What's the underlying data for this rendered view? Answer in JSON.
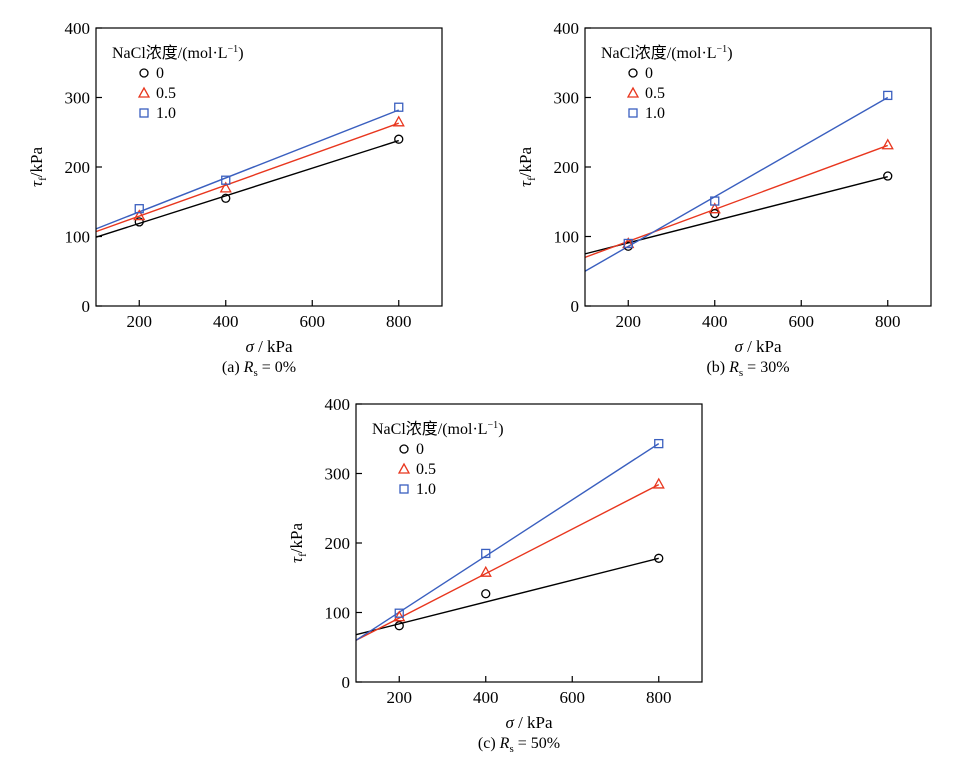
{
  "chart_data": [
    {
      "type": "scatter",
      "caption_prefix": "(a) ",
      "caption_var": "R",
      "caption_sub": "s",
      "caption_suffix": " = 0%",
      "xlabel_sym": "σ",
      "xlabel_unit": " / kPa",
      "ylabel_sym": "τ",
      "ylabel_sub": "f",
      "ylabel_unit": "/kPa",
      "xlim": [
        100,
        900
      ],
      "ylim": [
        0,
        400
      ],
      "xticks": [
        200,
        400,
        600,
        800
      ],
      "yticks": [
        0,
        100,
        200,
        300,
        400
      ],
      "legend_title_main": "NaCl浓度/(mol·L",
      "legend_title_sup": "−1",
      "legend_title_end": ")",
      "legend_position": "top-left",
      "series": [
        {
          "name": "0",
          "marker": "circle",
          "color": "#000000",
          "x": [
            200,
            400,
            800
          ],
          "y": [
            121,
            155,
            240
          ],
          "fit": [
            [
              100,
              99
            ],
            [
              800,
              238
            ]
          ]
        },
        {
          "name": "0.5",
          "marker": "triangle",
          "color": "#e8361e",
          "x": [
            200,
            400,
            800
          ],
          "y": [
            130,
            170,
            265
          ],
          "fit": [
            [
              100,
              107
            ],
            [
              800,
              263
            ]
          ]
        },
        {
          "name": "1.0",
          "marker": "square",
          "color": "#3a5fbf",
          "x": [
            200,
            400,
            800
          ],
          "y": [
            140,
            181,
            286
          ],
          "fit": [
            [
              100,
              111
            ],
            [
              800,
              282
            ]
          ]
        }
      ]
    },
    {
      "type": "scatter",
      "caption_prefix": "(b) ",
      "caption_var": "R",
      "caption_sub": "s",
      "caption_suffix": " = 30%",
      "xlabel_sym": "σ",
      "xlabel_unit": " / kPa",
      "ylabel_sym": "τ",
      "ylabel_sub": "f",
      "ylabel_unit": "/kPa",
      "xlim": [
        100,
        900
      ],
      "ylim": [
        0,
        400
      ],
      "xticks": [
        200,
        400,
        600,
        800
      ],
      "yticks": [
        0,
        100,
        200,
        300,
        400
      ],
      "legend_title_main": "NaCl浓度/(mol·L",
      "legend_title_sup": "−1",
      "legend_title_end": ")",
      "legend_position": "top-left",
      "series": [
        {
          "name": "0",
          "marker": "circle",
          "color": "#000000",
          "x": [
            200,
            400,
            800
          ],
          "y": [
            86,
            133,
            187
          ],
          "fit": [
            [
              100,
              75
            ],
            [
              800,
              186
            ]
          ]
        },
        {
          "name": "0.5",
          "marker": "triangle",
          "color": "#e8361e",
          "x": [
            200,
            400,
            800
          ],
          "y": [
            90,
            140,
            232
          ],
          "fit": [
            [
              100,
              70
            ],
            [
              800,
              231
            ]
          ]
        },
        {
          "name": "1.0",
          "marker": "square",
          "color": "#3a5fbf",
          "x": [
            200,
            400,
            800
          ],
          "y": [
            90,
            151,
            303
          ],
          "fit": [
            [
              100,
              50
            ],
            [
              800,
              300
            ]
          ]
        }
      ]
    },
    {
      "type": "scatter",
      "caption_prefix": "(c) ",
      "caption_var": "R",
      "caption_sub": "s",
      "caption_suffix": " = 50%",
      "xlabel_sym": "σ",
      "xlabel_unit": " / kPa",
      "ylabel_sym": "τ",
      "ylabel_sub": "f",
      "ylabel_unit": "/kPa",
      "xlim": [
        100,
        900
      ],
      "ylim": [
        0,
        400
      ],
      "xticks": [
        200,
        400,
        600,
        800
      ],
      "yticks": [
        0,
        100,
        200,
        300,
        400
      ],
      "legend_title_main": "NaCl浓度/(mol·L",
      "legend_title_sup": "−1",
      "legend_title_end": ")",
      "legend_position": "top-left",
      "series": [
        {
          "name": "0",
          "marker": "circle",
          "color": "#000000",
          "x": [
            200,
            400,
            800
          ],
          "y": [
            81,
            127,
            178
          ],
          "fit": [
            [
              100,
              68
            ],
            [
              800,
              178
            ]
          ]
        },
        {
          "name": "0.5",
          "marker": "triangle",
          "color": "#e8361e",
          "x": [
            200,
            400,
            800
          ],
          "y": [
            94,
            158,
            285
          ],
          "fit": [
            [
              100,
              60
            ],
            [
              800,
              284
            ]
          ]
        },
        {
          "name": "1.0",
          "marker": "square",
          "color": "#3a5fbf",
          "x": [
            200,
            400,
            800
          ],
          "y": [
            99,
            185,
            343
          ],
          "fit": [
            [
              100,
              60
            ],
            [
              800,
              343
            ]
          ]
        }
      ]
    }
  ]
}
